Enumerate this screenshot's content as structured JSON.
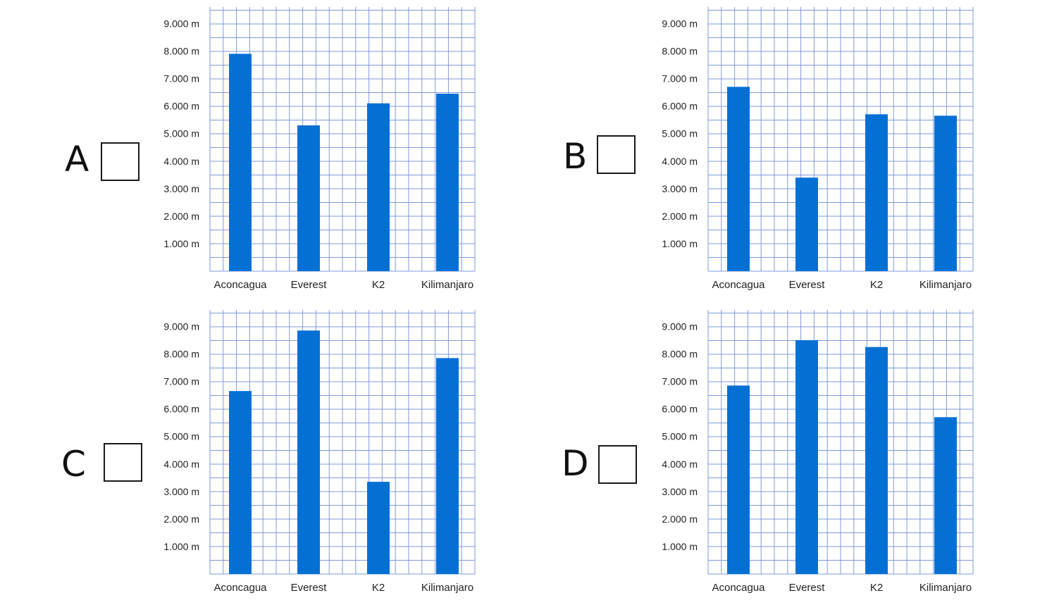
{
  "options": [
    {
      "letter": "A"
    },
    {
      "letter": "B"
    },
    {
      "letter": "C"
    },
    {
      "letter": "D"
    }
  ],
  "colors": {
    "bar": "#0570d4",
    "grid": "#7f9bdc",
    "text": "#222222"
  },
  "chart_data": [
    {
      "type": "bar",
      "categories": [
        "Aconcagua",
        "Everest",
        "K2",
        "Kilimanjaro"
      ],
      "values": [
        7900,
        5300,
        6100,
        6450
      ],
      "yticks": [
        "1.000 m",
        "2.000 m",
        "3.000 m",
        "4.000 m",
        "5.000 m",
        "6.000 m",
        "7.000 m",
        "8.000 m",
        "9.000 m"
      ],
      "ylim": [
        0,
        9600
      ],
      "grid": true
    },
    {
      "type": "bar",
      "categories": [
        "Aconcagua",
        "Everest",
        "K2",
        "Kilimanjaro"
      ],
      "values": [
        6700,
        3400,
        5700,
        5650
      ],
      "yticks": [
        "1.000 m",
        "2.000 m",
        "3.000 m",
        "4.000 m",
        "5.000 m",
        "6.000 m",
        "7.000 m",
        "8.000 m",
        "9.000 m"
      ],
      "ylim": [
        0,
        9600
      ],
      "grid": true
    },
    {
      "type": "bar",
      "categories": [
        "Aconcagua",
        "Everest",
        "K2",
        "Kilimanjaro"
      ],
      "values": [
        6650,
        8850,
        3350,
        7850
      ],
      "yticks": [
        "1.000 m",
        "2.000 m",
        "3.000 m",
        "4.000 m",
        "5.000 m",
        "6.000 m",
        "7.000 m",
        "8.000 m",
        "9.000 m"
      ],
      "ylim": [
        0,
        9600
      ],
      "grid": true
    },
    {
      "type": "bar",
      "categories": [
        "Aconcagua",
        "Everest",
        "K2",
        "Kilimanjaro"
      ],
      "values": [
        6850,
        8500,
        8250,
        5700
      ],
      "yticks": [
        "1.000 m",
        "2.000 m",
        "3.000 m",
        "4.000 m",
        "5.000 m",
        "6.000 m",
        "7.000 m",
        "8.000 m",
        "9.000 m"
      ],
      "ylim": [
        0,
        9600
      ],
      "grid": true
    }
  ]
}
